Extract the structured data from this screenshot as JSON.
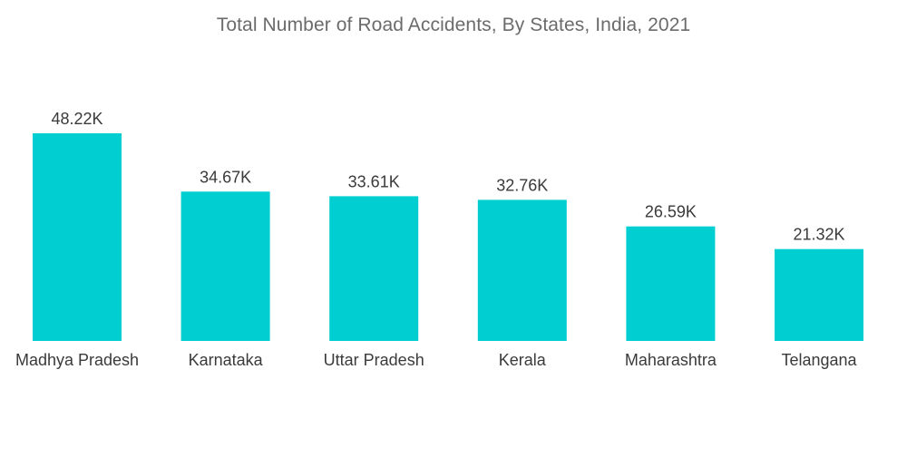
{
  "title": "Total Number of Road Accidents, By States, India, 2021",
  "colors": {
    "bar": "#00CED1",
    "text": "#3a3a3a",
    "title": "#6b6b6b"
  },
  "chart_data": {
    "type": "bar",
    "title": "Total Number of Road Accidents, By States, India, 2021",
    "categories": [
      "Madhya Pradesh",
      "Karnataka",
      "Uttar Pradesh",
      "Kerala",
      "Maharashtra",
      "Telangana"
    ],
    "values": [
      48.22,
      34.67,
      33.61,
      32.76,
      26.59,
      21.32
    ],
    "value_labels": [
      "48.22K",
      "34.67K",
      "33.61K",
      "32.76K",
      "26.59K",
      "21.32K"
    ],
    "unit": "thousands",
    "xlabel": "",
    "ylabel": "",
    "ylim": [
      0,
      48.22
    ],
    "grid": false,
    "legend": "none"
  }
}
